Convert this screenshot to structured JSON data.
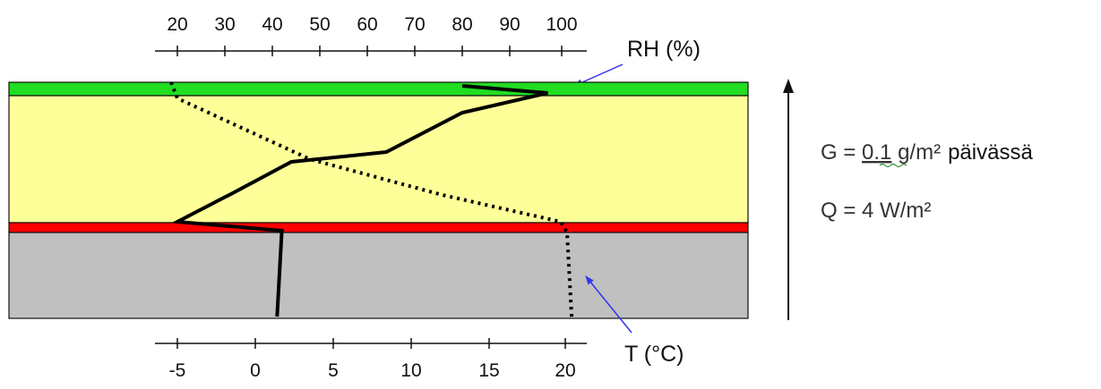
{
  "top_axis": {
    "label": "RH (%)",
    "ticks": [
      "20",
      "30",
      "40",
      "50",
      "60",
      "70",
      "80",
      "90",
      "100"
    ]
  },
  "bottom_axis": {
    "label": "T (°C)",
    "ticks": [
      "-5",
      "0",
      "5",
      "10",
      "15",
      "20"
    ]
  },
  "equations": {
    "g_prefix": "G = ",
    "g_value": "0.1",
    "g_unit": " g/m²",
    "g_suffix": "päivässä",
    "q": "Q = 4 W/m²"
  },
  "layers": [
    {
      "name": "top-layer",
      "color": "#22dd22"
    },
    {
      "name": "insulation-layer",
      "color": "#ffff99"
    },
    {
      "name": "membrane-layer",
      "color": "#ff0000"
    },
    {
      "name": "base-layer",
      "color": "#c0c0c0"
    }
  ],
  "colors": {
    "pointer": "#3333ee",
    "curves": "#000000"
  },
  "curves": {
    "rh": {
      "style": "solid",
      "unit": "%",
      "values": [
        80,
        98,
        80,
        64,
        44,
        32,
        20,
        42,
        41
      ]
    },
    "t": {
      "style": "dotted",
      "unit": "°C",
      "values": [
        -5.4,
        -5.0,
        3.5,
        12.0,
        19.6,
        20.0,
        20.3
      ]
    }
  }
}
